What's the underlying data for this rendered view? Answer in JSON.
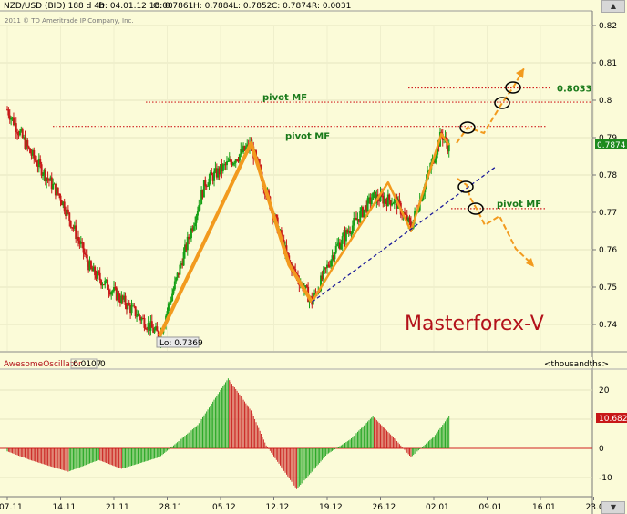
{
  "header": {
    "symbol": "NZD/USD (BID) 188 d 4h",
    "date": "D: 04.01.12 16:00",
    "open": "O: 0.7861",
    "high": "H: 0.7884",
    "low": "L: 0.7852",
    "close": "C: 0.7874",
    "range": "R: 0.0031",
    "copyright": "2011 © TD Ameritrade IP Company, Inc."
  },
  "chart_data": {
    "type": "candlestick",
    "instrument": "NZD/USD (BID) 188 d 4h",
    "x_labels": [
      "07.11",
      "14.11",
      "21.11",
      "28.11",
      "05.12",
      "12.12",
      "19.12",
      "26.12",
      "02.01",
      "09.01",
      "16.01",
      "23.01"
    ],
    "y_ticks": [
      "0.82",
      "0.81",
      "0.8",
      "0.79",
      "0.78",
      "0.77",
      "0.76",
      "0.75",
      "0.74"
    ],
    "ylim": [
      0.735,
      0.823
    ],
    "current_price": "0.7874",
    "low_label": "Lo: 0.7369",
    "key_points": [
      {
        "date": "07.11",
        "price": 0.7975
      },
      {
        "date": "10.11",
        "price": 0.786
      },
      {
        "date": "14.11",
        "price": 0.774
      },
      {
        "date": "18.11",
        "price": 0.7545
      },
      {
        "date": "27.11",
        "price": 0.7369
      },
      {
        "date": "03.12",
        "price": 0.778
      },
      {
        "date": "09.12",
        "price": 0.788
      },
      {
        "date": "14.12",
        "price": 0.7565
      },
      {
        "date": "17.12",
        "price": 0.746
      },
      {
        "date": "20.12",
        "price": 0.76
      },
      {
        "date": "25.12",
        "price": 0.774
      },
      {
        "date": "28.12",
        "price": 0.773
      },
      {
        "date": "30.12",
        "price": 0.766
      },
      {
        "date": "03.01",
        "price": 0.791
      },
      {
        "date": "04.01",
        "price": 0.7874
      }
    ],
    "levels": [
      {
        "label": "0.8033",
        "price": 0.8033
      },
      {
        "label": "pivot MF",
        "price": 0.7995
      },
      {
        "label": "pivot MF",
        "price": 0.793
      },
      {
        "label": "pivot MF",
        "price": 0.771
      }
    ],
    "watermark": "Masterforex-V",
    "oscillator": {
      "name": "AwesomeOscillator",
      "value": "0.0107",
      "param": "0",
      "units": "<thousandths>",
      "y_ticks": [
        "20",
        "10",
        "0",
        "-10"
      ],
      "current": "10.682",
      "ylim": [
        -13,
        25
      ],
      "key_points": [
        {
          "date": "07.11",
          "value": -1
        },
        {
          "date": "10.11",
          "value": -4
        },
        {
          "date": "15.11",
          "value": -8
        },
        {
          "date": "19.11",
          "value": -4
        },
        {
          "date": "22.11",
          "value": -7
        },
        {
          "date": "27.11",
          "value": -3
        },
        {
          "date": "02.12",
          "value": 8
        },
        {
          "date": "06.12",
          "value": 24
        },
        {
          "date": "09.12",
          "value": 13
        },
        {
          "date": "11.12",
          "value": 1
        },
        {
          "date": "15.12",
          "value": -14
        },
        {
          "date": "19.12",
          "value": -2
        },
        {
          "date": "22.12",
          "value": 3
        },
        {
          "date": "25.12",
          "value": 11
        },
        {
          "date": "28.12",
          "value": 3
        },
        {
          "date": "30.12",
          "value": -3
        },
        {
          "date": "02.01",
          "value": 4
        },
        {
          "date": "04.01",
          "value": 11
        }
      ]
    }
  }
}
